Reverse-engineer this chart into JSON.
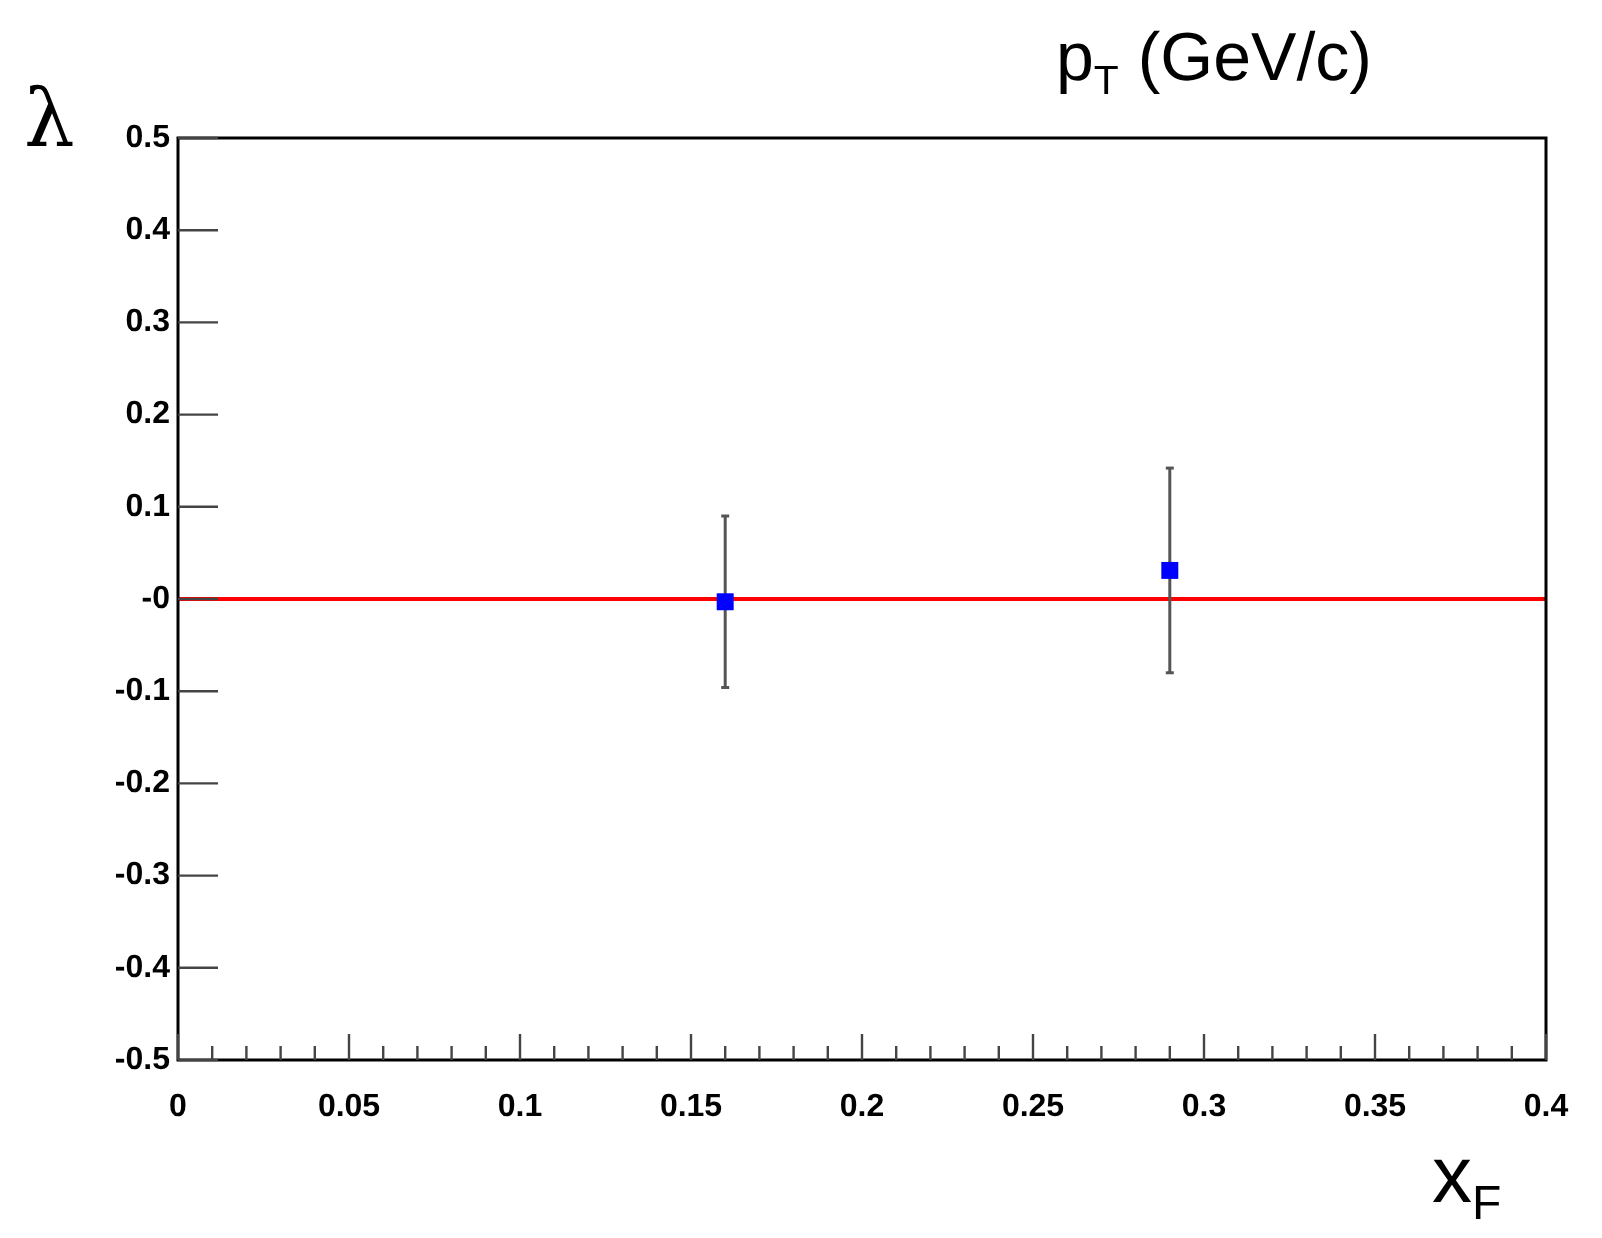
{
  "chart_data": {
    "type": "scatter",
    "xlabel": "x$_{F}$",
    "ylabel": "λ",
    "annotations": [
      "p$_{T}$ (GeV/c)"
    ],
    "x": [
      0.16,
      0.29
    ],
    "series": [
      {
        "color": "#0000ff",
        "values": [
          -0.003,
          0.031
        ],
        "errors": [
          0.093,
          0.111
        ]
      }
    ],
    "marker": "square",
    "xlim": [
      0,
      0.4
    ],
    "ylim": [
      -0.5,
      0.5
    ],
    "xticks": [
      0,
      {
        "value": 0.01,
        "label": null
      },
      {
        "value": 0.02,
        "label": null
      },
      {
        "value": 0.03,
        "label": null
      },
      {
        "value": 0.04,
        "label": null
      },
      0.05,
      {
        "value": 0.06,
        "label": null
      },
      {
        "value": 0.07,
        "label": null
      },
      {
        "value": 0.08,
        "label": null
      },
      {
        "value": 0.09,
        "label": null
      },
      0.1,
      {
        "value": 0.11,
        "label": null
      },
      {
        "value": 0.12,
        "label": null
      },
      {
        "value": 0.13,
        "label": null
      },
      {
        "value": 0.14,
        "label": null
      },
      0.15,
      {
        "value": 0.16,
        "label": null
      },
      {
        "value": 0.17,
        "label": null
      },
      {
        "value": 0.18,
        "label": null
      },
      {
        "value": 0.19,
        "label": null
      },
      0.2,
      {
        "value": 0.21,
        "label": null
      },
      {
        "value": 0.22,
        "label": null
      },
      {
        "value": 0.23,
        "label": null
      },
      {
        "value": 0.24,
        "label": null
      },
      0.25,
      {
        "value": 0.26,
        "label": null
      },
      {
        "value": 0.27,
        "label": null
      },
      {
        "value": 0.28,
        "label": null
      },
      {
        "value": 0.29,
        "label": null
      },
      0.3,
      {
        "value": 0.31,
        "label": null
      },
      {
        "value": 0.32,
        "label": null
      },
      {
        "value": 0.33,
        "label": null
      },
      {
        "value": 0.34,
        "label": null
      },
      0.35,
      {
        "value": 0.36,
        "label": null
      },
      {
        "value": 0.37,
        "label": null
      },
      {
        "value": 0.38,
        "label": null
      },
      {
        "value": 0.39,
        "label": null
      },
      0.4
    ],
    "yticks": [
      -0.5,
      -0.4,
      -0.3,
      -0.2,
      -0.1,
      {
        "value": 0,
        "label": "-0"
      },
      0.1,
      0.2,
      0.3,
      0.4,
      0.5
    ],
    "ref_lines": [
      {
        "axis": "y",
        "value": 0,
        "color": "#ff0000"
      }
    ]
  }
}
